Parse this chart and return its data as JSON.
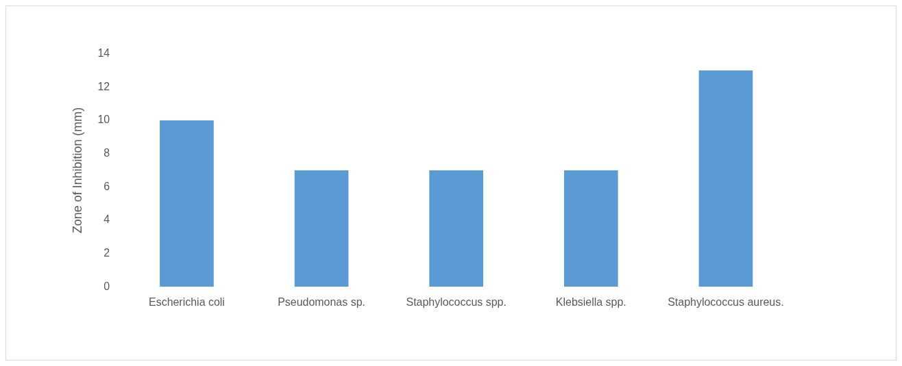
{
  "chart_data": {
    "type": "bar",
    "ylabel": "Zone of Inhibition (mm)",
    "categories": [
      "Escherichia coli",
      "Pseudomonas sp.",
      "Staphylococcus spp.",
      "Klebsiella spp.",
      "Staphylococcus aureus."
    ],
    "values": [
      10,
      7,
      7,
      7,
      13
    ],
    "color": "#5b9bd5",
    "ylim": [
      0,
      14
    ],
    "yticks": [
      0,
      2,
      4,
      6,
      8,
      10,
      12,
      14
    ],
    "grid": false,
    "legend": false
  }
}
